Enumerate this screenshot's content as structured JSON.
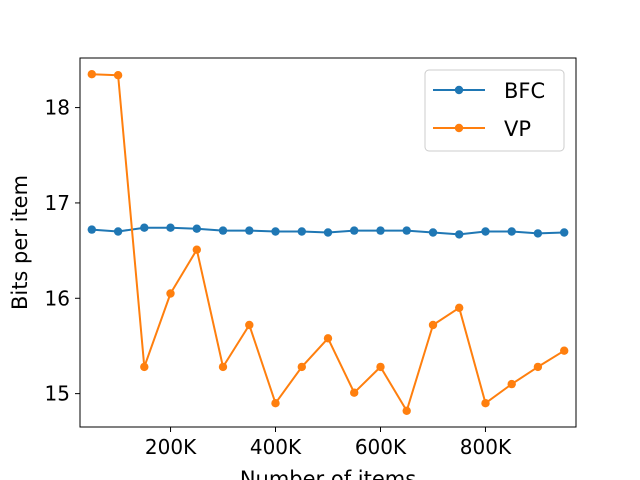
{
  "chart_data": {
    "type": "line",
    "xlabel": "Number of items",
    "ylabel": "Bits per item",
    "xlim": [
      27500,
      972500
    ],
    "ylim": [
      14.65,
      18.52
    ],
    "xticks": [
      200000,
      400000,
      600000,
      800000
    ],
    "xtick_labels": [
      "200K",
      "400K",
      "600K",
      "800K"
    ],
    "yticks": [
      15,
      16,
      17,
      18
    ],
    "ytick_labels": [
      "15",
      "16",
      "17",
      "18"
    ],
    "grid": false,
    "legend_position": "top-right",
    "x": [
      50000,
      100000,
      150000,
      200000,
      250000,
      300000,
      350000,
      400000,
      450000,
      500000,
      550000,
      600000,
      650000,
      700000,
      750000,
      800000,
      850000,
      900000,
      950000
    ],
    "series": [
      {
        "name": "BFC",
        "color": "#1f77b4",
        "values": [
          16.72,
          16.7,
          16.74,
          16.74,
          16.73,
          16.71,
          16.71,
          16.7,
          16.7,
          16.69,
          16.71,
          16.71,
          16.71,
          16.69,
          16.67,
          16.7,
          16.7,
          16.68,
          16.69
        ]
      },
      {
        "name": "VP",
        "color": "#ff7f0e",
        "values": [
          18.35,
          18.34,
          15.28,
          16.05,
          16.51,
          15.28,
          15.72,
          14.9,
          15.28,
          15.58,
          15.01,
          15.28,
          14.82,
          15.72,
          15.9,
          14.9,
          15.1,
          15.28,
          15.45
        ]
      }
    ]
  }
}
